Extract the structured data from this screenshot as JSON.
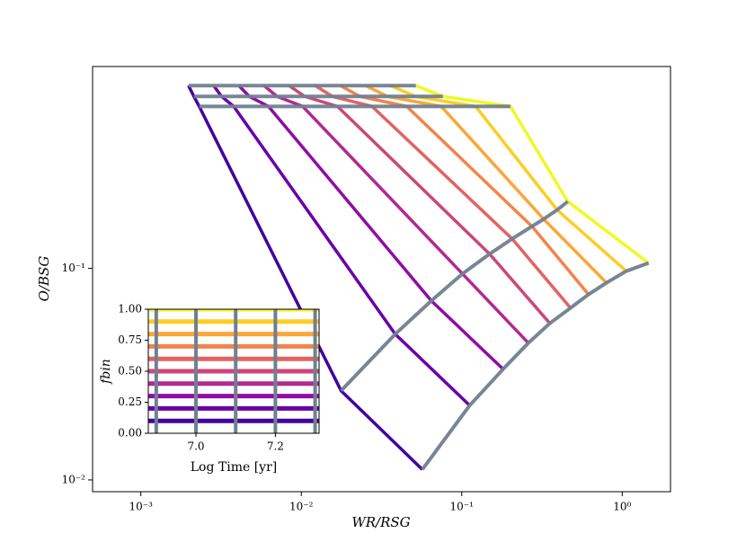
{
  "chart_data": [
    {
      "type": "line",
      "xlabel": "WR/RSG",
      "ylabel": "O/BSG",
      "xscale": "log",
      "yscale": "log",
      "xlim": [
        0.0005,
        2
      ],
      "ylim": [
        0.0088,
        0.9
      ],
      "xticks": [
        {
          "value": 0.001,
          "label": "10⁻³"
        },
        {
          "value": 0.01,
          "label": "10⁻²"
        },
        {
          "value": 0.1,
          "label": "10⁻¹"
        },
        {
          "value": 1,
          "label": "10⁰"
        }
      ],
      "yticks": [
        {
          "value": 0.01,
          "label": "10⁻²"
        },
        {
          "value": 0.1,
          "label": "10⁻¹"
        }
      ],
      "connector_color": "#708090",
      "series": [
        {
          "color": "#41049d",
          "x": [
            0.00198,
            0.00214,
            0.00231,
            0.0177,
            0.0568
          ],
          "y": [
            0.731,
            0.65,
            0.583,
            0.0264,
            0.0112
          ]
        },
        {
          "color": "#6a00a8",
          "x": [
            0.00284,
            0.00318,
            0.00379,
            0.0385,
            0.112
          ],
          "y": [
            0.731,
            0.65,
            0.583,
            0.0489,
            0.0225
          ]
        },
        {
          "color": "#8f0da4",
          "x": [
            0.00408,
            0.00474,
            0.00624,
            0.0646,
            0.181
          ],
          "y": [
            0.731,
            0.65,
            0.583,
            0.0703,
            0.0334
          ]
        },
        {
          "color": "#b12a90",
          "x": [
            0.00586,
            0.00705,
            0.0102,
            0.101,
            0.26
          ],
          "y": [
            0.731,
            0.65,
            0.583,
            0.0943,
            0.0444
          ]
        },
        {
          "color": "#cc4778",
          "x": [
            0.0084,
            0.0105,
            0.0168,
            0.149,
            0.354
          ],
          "y": [
            0.731,
            0.65,
            0.583,
            0.117,
            0.055
          ]
        },
        {
          "color": "#e16462",
          "x": [
            0.0122,
            0.0156,
            0.0276,
            0.206,
            0.476
          ],
          "y": [
            0.731,
            0.65,
            0.583,
            0.138,
            0.065
          ]
        },
        {
          "color": "#f2844b",
          "x": [
            0.0175,
            0.0232,
            0.0454,
            0.274,
            0.617
          ],
          "y": [
            0.731,
            0.65,
            0.583,
            0.158,
            0.0753
          ]
        },
        {
          "color": "#fca636",
          "x": [
            0.0252,
            0.0344,
            0.0745,
            0.324,
            0.798
          ],
          "y": [
            0.731,
            0.65,
            0.583,
            0.171,
            0.0855
          ]
        },
        {
          "color": "#fcce25",
          "x": [
            0.036,
            0.0513,
            0.122,
            0.393,
            1.06
          ],
          "y": [
            0.731,
            0.65,
            0.583,
            0.189,
            0.0971
          ]
        },
        {
          "color": "#f0f921",
          "x": [
            0.0518,
            0.0762,
            0.201,
            0.458,
            1.46
          ],
          "y": [
            0.731,
            0.65,
            0.583,
            0.207,
            0.106
          ]
        }
      ]
    },
    {
      "type": "inset",
      "xlabel": "Log Time [yr]",
      "ylabel": "fbin",
      "xlim": [
        6.88,
        7.31
      ],
      "ylim": [
        0,
        1
      ],
      "xticks": [
        {
          "value": 7,
          "label": "7.0"
        },
        7.2
      ],
      "yticks": [
        {
          "value": 0,
          "label": "0.00"
        },
        0.25,
        {
          "value": 0.5,
          "label": "0.50"
        },
        0.75,
        {
          "value": 1,
          "label": "1.00"
        }
      ],
      "hlines": [
        0.1,
        0.2,
        0.3,
        0.4,
        0.5,
        0.6,
        0.7,
        0.8,
        0.9,
        1.0
      ],
      "hline_colors": [
        "#41049d",
        "#6a00a8",
        "#8f0da4",
        "#b12a90",
        "#cc4778",
        "#e16462",
        "#f2844b",
        "#fca636",
        "#fcce25",
        "#f0f921"
      ],
      "vlines": [
        6.9,
        7.0,
        7.1,
        7.2,
        7.3
      ],
      "vline_color": "#708090"
    }
  ]
}
